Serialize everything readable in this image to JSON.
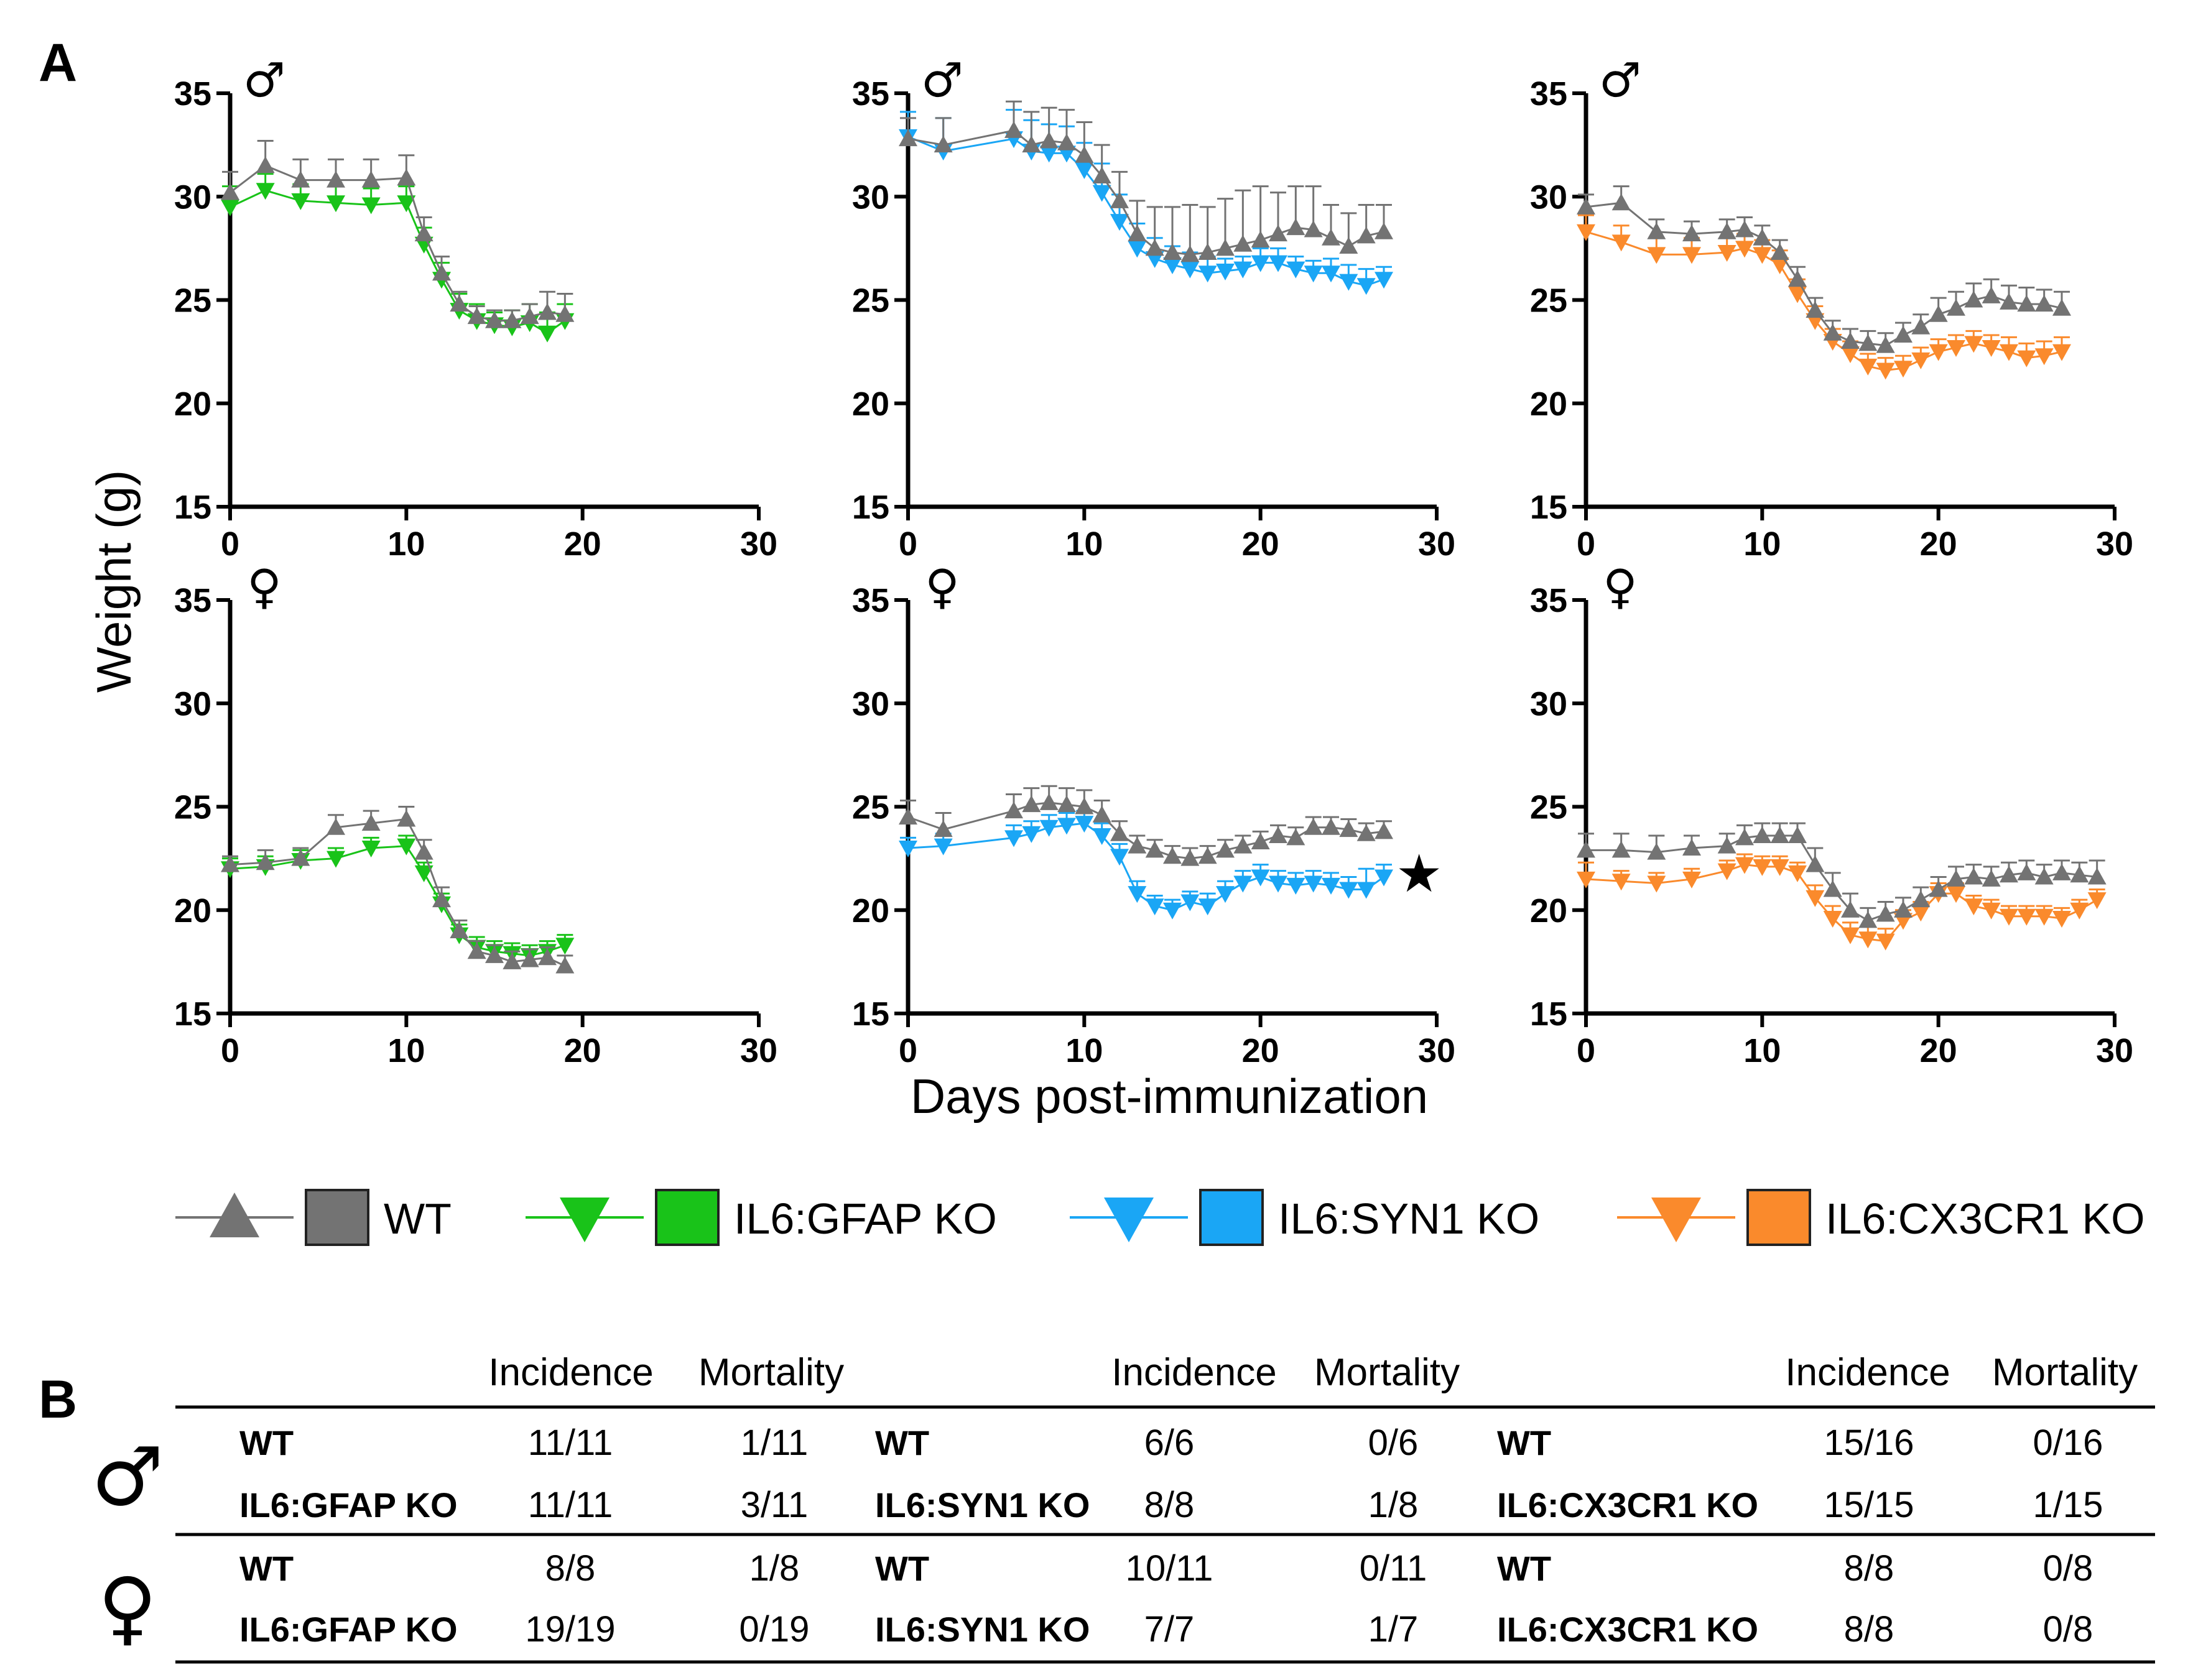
{
  "panel_labels": {
    "a": "A",
    "b": "B"
  },
  "axis_titles": {
    "y": "Weight (g)",
    "x": "Days post-immunization"
  },
  "colors": {
    "WT": "#737373",
    "IL6:GFAP KO": "#19c319",
    "IL6:SYN1 KO": "#1aa6f5",
    "IL6:CX3CR1 KO": "#fa8a2c"
  },
  "chart_data": [
    {
      "type": "line",
      "title": "♂",
      "xlabel": "",
      "ylabel": "Weight (g)",
      "xlim": [
        0,
        30
      ],
      "ylim": [
        15,
        35
      ],
      "xticks": [
        "0",
        "10",
        "20",
        "30"
      ],
      "yticks": [
        "15",
        "20",
        "25",
        "30",
        "35"
      ],
      "series": [
        {
          "name": "WT",
          "marker": "up",
          "x": [
            0,
            2,
            4,
            6,
            8,
            10,
            11,
            12,
            13,
            14,
            15,
            16,
            17,
            18,
            19
          ],
          "y": [
            30.2,
            31.5,
            30.8,
            30.8,
            30.8,
            30.9,
            28.2,
            26.3,
            24.8,
            24.2,
            24.0,
            24.0,
            24.2,
            24.4,
            24.3
          ],
          "err": [
            1.0,
            1.2,
            1.0,
            1.0,
            1.0,
            1.1,
            0.8,
            0.8,
            0.6,
            0.5,
            0.5,
            0.5,
            0.6,
            1.0,
            1.0
          ]
        },
        {
          "name": "IL6:GFAP KO",
          "marker": "down",
          "x": [
            0,
            2,
            4,
            6,
            8,
            10,
            11,
            12,
            13,
            14,
            15,
            16,
            17,
            18,
            19
          ],
          "y": [
            29.5,
            30.3,
            29.8,
            29.7,
            29.6,
            29.7,
            27.7,
            26.0,
            24.5,
            24.0,
            23.8,
            23.7,
            23.9,
            23.4,
            24.0
          ],
          "err": [
            1.0,
            0.8,
            0.8,
            0.8,
            0.8,
            0.8,
            0.8,
            0.8,
            0.8,
            0.8,
            0.6,
            0.8,
            0.9,
            1.0,
            0.8
          ]
        }
      ]
    },
    {
      "type": "line",
      "title": "♂",
      "xlabel": "",
      "ylabel": "",
      "xlim": [
        0,
        30
      ],
      "ylim": [
        15,
        35
      ],
      "xticks": [
        "0",
        "10",
        "20",
        "30"
      ],
      "yticks": [
        "15",
        "20",
        "25",
        "30",
        "35"
      ],
      "series": [
        {
          "name": "WT",
          "marker": "up",
          "x": [
            0,
            2,
            6,
            7,
            8,
            9,
            10,
            11,
            12,
            13,
            14,
            15,
            16,
            17,
            18,
            19,
            20,
            21,
            22,
            23,
            24,
            25,
            26,
            27
          ],
          "y": [
            32.8,
            32.5,
            33.2,
            32.5,
            32.7,
            32.6,
            32.0,
            31.0,
            29.8,
            28.2,
            27.5,
            27.3,
            27.2,
            27.3,
            27.5,
            27.7,
            27.9,
            28.2,
            28.5,
            28.4,
            28.0,
            27.6,
            28.1,
            28.3
          ],
          "err": [
            1.0,
            1.3,
            1.4,
            1.6,
            1.6,
            1.6,
            1.6,
            1.5,
            1.4,
            1.6,
            2.0,
            2.2,
            2.4,
            2.2,
            2.4,
            2.6,
            2.6,
            2.0,
            2.0,
            2.1,
            1.6,
            1.6,
            1.5,
            1.3
          ]
        },
        {
          "name": "IL6:SYN1 KO",
          "marker": "down",
          "x": [
            0,
            2,
            6,
            7,
            8,
            9,
            10,
            11,
            12,
            13,
            14,
            15,
            16,
            17,
            18,
            19,
            20,
            21,
            22,
            23,
            24,
            25,
            26,
            27
          ],
          "y": [
            32.9,
            32.2,
            32.8,
            32.2,
            32.1,
            32.1,
            31.3,
            30.2,
            28.8,
            27.5,
            27.0,
            26.7,
            26.5,
            26.3,
            26.4,
            26.5,
            26.8,
            26.8,
            26.5,
            26.3,
            26.3,
            25.9,
            25.7,
            26.0
          ],
          "err": [
            1.2,
            1.6,
            1.4,
            1.5,
            1.4,
            1.3,
            1.3,
            1.4,
            1.3,
            1.2,
            1.0,
            0.9,
            0.8,
            0.8,
            0.6,
            0.6,
            0.7,
            0.7,
            0.6,
            0.6,
            0.7,
            0.8,
            0.8,
            0.6
          ]
        }
      ]
    },
    {
      "type": "line",
      "title": "♂",
      "xlabel": "",
      "ylabel": "",
      "xlim": [
        0,
        30
      ],
      "ylim": [
        15,
        35
      ],
      "xticks": [
        "0",
        "10",
        "20",
        "30"
      ],
      "yticks": [
        "15",
        "20",
        "25",
        "30",
        "35"
      ],
      "series": [
        {
          "name": "WT",
          "marker": "up",
          "x": [
            0,
            2,
            4,
            6,
            8,
            9,
            10,
            11,
            12,
            13,
            14,
            15,
            16,
            17,
            18,
            19,
            20,
            21,
            22,
            23,
            24,
            25,
            26,
            27
          ],
          "y": [
            29.5,
            29.7,
            28.3,
            28.2,
            28.3,
            28.4,
            28.0,
            27.3,
            26.0,
            24.5,
            23.4,
            23.0,
            22.9,
            22.8,
            23.3,
            23.7,
            24.3,
            24.6,
            25.0,
            25.2,
            24.9,
            24.8,
            24.8,
            24.6
          ],
          "err": [
            0.6,
            0.8,
            0.6,
            0.6,
            0.6,
            0.6,
            0.6,
            0.6,
            0.6,
            0.6,
            0.6,
            0.6,
            0.6,
            0.6,
            0.6,
            0.6,
            0.8,
            0.8,
            0.8,
            0.8,
            0.8,
            0.8,
            0.7,
            0.8
          ]
        },
        {
          "name": "IL6:CX3CR1 KO",
          "marker": "down",
          "x": [
            0,
            2,
            4,
            6,
            8,
            9,
            10,
            11,
            12,
            13,
            14,
            15,
            16,
            17,
            18,
            19,
            20,
            21,
            22,
            23,
            24,
            25,
            26,
            27
          ],
          "y": [
            28.3,
            27.8,
            27.2,
            27.2,
            27.3,
            27.5,
            27.2,
            26.7,
            25.3,
            24.0,
            23.0,
            22.4,
            21.8,
            21.6,
            21.7,
            22.1,
            22.5,
            22.7,
            22.9,
            22.7,
            22.5,
            22.2,
            22.3,
            22.5
          ],
          "err": [
            0.8,
            0.8,
            0.8,
            0.8,
            0.7,
            0.7,
            0.7,
            0.7,
            0.7,
            0.7,
            0.6,
            0.6,
            0.6,
            0.6,
            0.6,
            0.6,
            0.6,
            0.6,
            0.6,
            0.6,
            0.7,
            0.7,
            0.7,
            0.7
          ]
        }
      ]
    },
    {
      "type": "line",
      "title": "♀",
      "xlabel": "",
      "ylabel": "",
      "xlim": [
        0,
        30
      ],
      "ylim": [
        15,
        35
      ],
      "xticks": [
        "0",
        "10",
        "20",
        "30"
      ],
      "yticks": [
        "15",
        "20",
        "25",
        "30",
        "35"
      ],
      "series": [
        {
          "name": "WT",
          "marker": "up",
          "x": [
            0,
            2,
            4,
            6,
            8,
            10,
            11,
            12,
            13,
            14,
            15,
            16,
            17,
            18,
            19
          ],
          "y": [
            22.2,
            22.3,
            22.5,
            24.0,
            24.2,
            24.4,
            22.8,
            20.5,
            19.0,
            18.0,
            17.8,
            17.5,
            17.6,
            17.7,
            17.3
          ],
          "err": [
            0.4,
            0.6,
            0.5,
            0.6,
            0.6,
            0.6,
            0.6,
            0.6,
            0.5,
            0.5,
            0.5,
            0.5,
            0.5,
            0.5,
            0.5
          ]
        },
        {
          "name": "IL6:GFAP KO",
          "marker": "down",
          "x": [
            0,
            2,
            4,
            6,
            8,
            10,
            11,
            12,
            13,
            14,
            15,
            16,
            17,
            18,
            19
          ],
          "y": [
            22.0,
            22.1,
            22.4,
            22.5,
            23.0,
            23.1,
            21.8,
            20.3,
            18.8,
            18.2,
            18.0,
            17.9,
            17.8,
            18.0,
            18.3
          ],
          "err": [
            0.5,
            0.5,
            0.5,
            0.5,
            0.5,
            0.5,
            0.5,
            0.5,
            0.5,
            0.5,
            0.5,
            0.5,
            0.5,
            0.5,
            0.5
          ]
        }
      ]
    },
    {
      "type": "line",
      "title": "♀",
      "xlabel": "Days post-immunization",
      "ylabel": "",
      "xlim": [
        0,
        30
      ],
      "ylim": [
        15,
        35
      ],
      "xticks": [
        "0",
        "10",
        "20",
        "30"
      ],
      "yticks": [
        "15",
        "20",
        "25",
        "30",
        "35"
      ],
      "annotation": "★",
      "series": [
        {
          "name": "WT",
          "marker": "up",
          "x": [
            0,
            2,
            6,
            7,
            8,
            9,
            10,
            11,
            12,
            13,
            14,
            15,
            16,
            17,
            18,
            19,
            20,
            21,
            22,
            23,
            24,
            25,
            26,
            27
          ],
          "y": [
            24.5,
            23.9,
            24.8,
            25.1,
            25.2,
            25.1,
            25.0,
            24.6,
            23.7,
            23.1,
            22.9,
            22.6,
            22.5,
            22.6,
            22.9,
            23.1,
            23.3,
            23.6,
            23.5,
            24.0,
            24.0,
            23.9,
            23.7,
            23.8
          ],
          "err": [
            0.8,
            0.8,
            0.8,
            0.8,
            0.8,
            0.8,
            0.8,
            0.7,
            0.6,
            0.5,
            0.5,
            0.5,
            0.5,
            0.5,
            0.5,
            0.5,
            0.5,
            0.5,
            0.5,
            0.5,
            0.5,
            0.5,
            0.5,
            0.5
          ]
        },
        {
          "name": "IL6:SYN1 KO",
          "marker": "down",
          "x": [
            0,
            2,
            6,
            7,
            8,
            9,
            10,
            11,
            12,
            13,
            14,
            15,
            16,
            17,
            18,
            19,
            20,
            21,
            22,
            23,
            24,
            25,
            26,
            27
          ],
          "y": [
            23.0,
            23.1,
            23.5,
            23.7,
            24.0,
            24.1,
            24.2,
            23.6,
            22.6,
            20.8,
            20.2,
            20.0,
            20.4,
            20.2,
            20.8,
            21.3,
            21.6,
            21.3,
            21.2,
            21.3,
            21.2,
            21.0,
            21.0,
            21.6
          ],
          "err": [
            0.5,
            0.6,
            0.6,
            0.6,
            0.6,
            0.6,
            0.6,
            0.6,
            0.6,
            0.6,
            0.5,
            0.5,
            0.5,
            0.6,
            0.6,
            0.6,
            0.6,
            0.6,
            0.6,
            0.6,
            0.6,
            0.6,
            1.0,
            0.6
          ]
        }
      ]
    },
    {
      "type": "line",
      "title": "♀",
      "xlabel": "",
      "ylabel": "",
      "xlim": [
        0,
        30
      ],
      "ylim": [
        15,
        35
      ],
      "xticks": [
        "0",
        "10",
        "20",
        "30"
      ],
      "yticks": [
        "15",
        "20",
        "25",
        "30",
        "35"
      ],
      "series": [
        {
          "name": "WT",
          "marker": "up",
          "x": [
            0,
            2,
            4,
            6,
            8,
            9,
            10,
            11,
            12,
            13,
            14,
            15,
            16,
            17,
            18,
            19,
            20,
            21,
            22,
            23,
            24,
            25,
            26,
            27,
            28,
            29
          ],
          "y": [
            22.9,
            22.9,
            22.8,
            23.0,
            23.1,
            23.5,
            23.6,
            23.6,
            23.6,
            22.2,
            21.0,
            20.0,
            19.5,
            19.8,
            20.0,
            20.5,
            21.0,
            21.5,
            21.6,
            21.5,
            21.7,
            21.8,
            21.6,
            21.8,
            21.7,
            21.6
          ],
          "err": [
            0.8,
            0.8,
            0.8,
            0.6,
            0.6,
            0.6,
            0.6,
            0.6,
            0.6,
            0.8,
            0.8,
            0.8,
            0.6,
            0.6,
            0.6,
            0.6,
            0.6,
            0.6,
            0.6,
            0.6,
            0.6,
            0.6,
            0.6,
            0.6,
            0.6,
            0.8
          ]
        },
        {
          "name": "IL6:CX3CR1 KO",
          "marker": "down",
          "x": [
            0,
            2,
            4,
            6,
            8,
            9,
            10,
            11,
            12,
            13,
            14,
            15,
            16,
            17,
            18,
            19,
            20,
            21,
            22,
            23,
            24,
            25,
            26,
            27,
            28,
            29
          ],
          "y": [
            21.5,
            21.4,
            21.3,
            21.5,
            21.9,
            22.2,
            22.1,
            22.1,
            21.8,
            20.6,
            19.6,
            18.8,
            18.6,
            18.5,
            19.5,
            19.9,
            20.8,
            20.8,
            20.2,
            20.0,
            19.7,
            19.7,
            19.7,
            19.6,
            20.0,
            20.5
          ],
          "err": [
            0.8,
            0.5,
            0.5,
            0.5,
            0.5,
            0.5,
            0.5,
            0.5,
            0.5,
            0.6,
            0.6,
            0.6,
            0.6,
            0.6,
            0.5,
            0.5,
            0.5,
            0.5,
            0.5,
            0.5,
            0.5,
            0.5,
            0.5,
            0.5,
            0.5,
            0.5
          ]
        }
      ]
    }
  ],
  "legend": [
    {
      "label": "WT",
      "color": "#737373",
      "marker": "up"
    },
    {
      "label": "IL6:GFAP KO",
      "color": "#19c319",
      "marker": "down"
    },
    {
      "label": "IL6:SYN1 KO",
      "color": "#1aa6f5",
      "marker": "down"
    },
    {
      "label": "IL6:CX3CR1 KO",
      "color": "#fa8a2c",
      "marker": "down"
    }
  ],
  "table": {
    "headers": [
      "Incidence",
      "Mortality"
    ],
    "sex_symbols": [
      "♂",
      "♀"
    ],
    "rows": [
      [
        {
          "g": "WT",
          "i": "11/11",
          "m": "1/11"
        },
        {
          "g": "WT",
          "i": "6/6",
          "m": "0/6"
        },
        {
          "g": "WT",
          "i": "15/16",
          "m": "0/16"
        }
      ],
      [
        {
          "g": "IL6:GFAP KO",
          "i": "11/11",
          "m": "3/11"
        },
        {
          "g": "IL6:SYN1 KO",
          "i": "8/8",
          "m": "1/8"
        },
        {
          "g": "IL6:CX3CR1 KO",
          "i": "15/15",
          "m": "1/15"
        }
      ],
      [
        {
          "g": "WT",
          "i": "8/8",
          "m": "1/8"
        },
        {
          "g": "WT",
          "i": "10/11",
          "m": "0/11"
        },
        {
          "g": "WT",
          "i": "8/8",
          "m": "0/8"
        }
      ],
      [
        {
          "g": "IL6:GFAP KO",
          "i": "19/19",
          "m": "0/19"
        },
        {
          "g": "IL6:SYN1 KO",
          "i": "7/7",
          "m": "1/7"
        },
        {
          "g": "IL6:CX3CR1 KO",
          "i": "8/8",
          "m": "0/8"
        }
      ]
    ]
  }
}
